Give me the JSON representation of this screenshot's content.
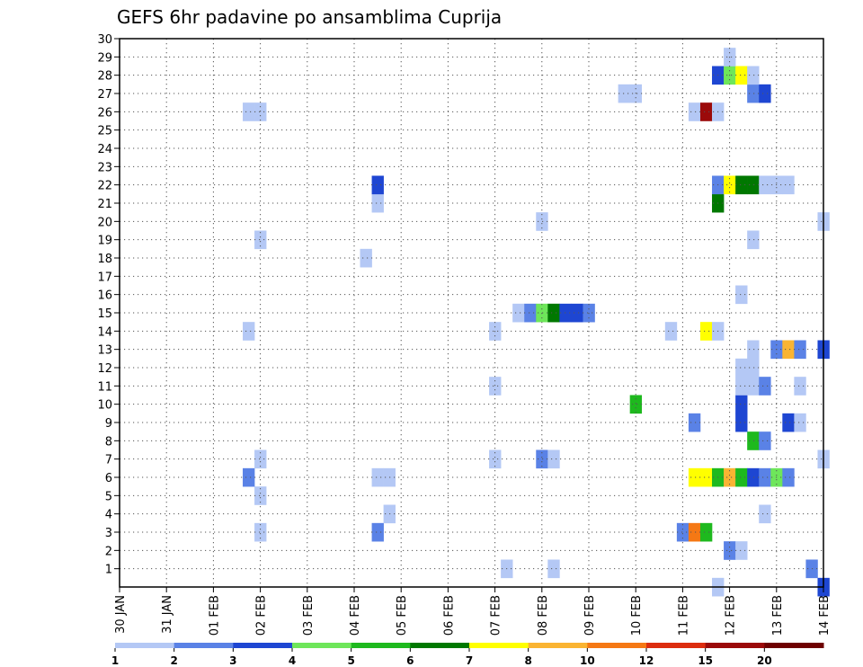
{
  "chart_data": {
    "type": "heatmap",
    "title": "GEFS 6hr padavine po ansamblima Cuprija",
    "xlabel": "",
    "ylabel": "",
    "x_ticks": [
      "30 JAN",
      "31 JAN",
      "01 FEB",
      "02 FEB",
      "03 FEB",
      "04 FEB",
      "05 FEB",
      "06 FEB",
      "07 FEB",
      "08 FEB",
      "09 FEB",
      "10 FEB",
      "11 FEB",
      "12 FEB",
      "13 FEB",
      "14 FEB"
    ],
    "y_ticks": [
      1,
      2,
      3,
      4,
      5,
      6,
      7,
      8,
      9,
      10,
      11,
      12,
      13,
      14,
      15,
      16,
      17,
      18,
      19,
      20,
      21,
      22,
      23,
      24,
      25,
      26,
      27,
      28,
      29,
      30
    ],
    "xlim": [
      0,
      60
    ],
    "ylim": [
      0,
      30
    ],
    "grid": true,
    "legend": {
      "placement": "bottom",
      "labels": [
        "1",
        "2",
        "3",
        "4",
        "5",
        "6",
        "7",
        "8",
        "10",
        "12",
        "15",
        "20"
      ],
      "colors": [
        "#b4c8f5",
        "#5a82e6",
        "#1e46d2",
        "#6ee65a",
        "#1eb91e",
        "#007800",
        "#ffff00",
        "#fab432",
        "#f57814",
        "#dc2d0f",
        "#9b0a0a",
        "#6e0000"
      ]
    },
    "cells": [
      {
        "member": 0,
        "step": 51,
        "level": 1
      },
      {
        "member": 0,
        "step": 60,
        "level": 3
      },
      {
        "member": 1,
        "step": 33,
        "level": 1
      },
      {
        "member": 1,
        "step": 37,
        "level": 1
      },
      {
        "member": 1,
        "step": 59,
        "level": 2
      },
      {
        "member": 2,
        "step": 52,
        "level": 2
      },
      {
        "member": 2,
        "step": 53,
        "level": 1
      },
      {
        "member": 3,
        "step": 12,
        "level": 1
      },
      {
        "member": 3,
        "step": 22,
        "level": 2
      },
      {
        "member": 3,
        "step": 48,
        "level": 2
      },
      {
        "member": 3,
        "step": 49,
        "level": 9
      },
      {
        "member": 3,
        "step": 50,
        "level": 5
      },
      {
        "member": 4,
        "step": 23,
        "level": 1
      },
      {
        "member": 4,
        "step": 55,
        "level": 1
      },
      {
        "member": 5,
        "step": 12,
        "level": 1
      },
      {
        "member": 6,
        "step": 11,
        "level": 2
      },
      {
        "member": 6,
        "step": 22,
        "level": 1
      },
      {
        "member": 6,
        "step": 23,
        "level": 1
      },
      {
        "member": 6,
        "step": 49,
        "level": 7
      },
      {
        "member": 6,
        "step": 50,
        "level": 7
      },
      {
        "member": 6,
        "step": 51,
        "level": 5
      },
      {
        "member": 6,
        "step": 52,
        "level": 8
      },
      {
        "member": 6,
        "step": 53,
        "level": 5
      },
      {
        "member": 6,
        "step": 54,
        "level": 3
      },
      {
        "member": 6,
        "step": 55,
        "level": 2
      },
      {
        "member": 6,
        "step": 56,
        "level": 4
      },
      {
        "member": 6,
        "step": 57,
        "level": 2
      },
      {
        "member": 7,
        "step": 12,
        "level": 1
      },
      {
        "member": 7,
        "step": 32,
        "level": 1
      },
      {
        "member": 7,
        "step": 36,
        "level": 2
      },
      {
        "member": 7,
        "step": 37,
        "level": 1
      },
      {
        "member": 7,
        "step": 60,
        "level": 1
      },
      {
        "member": 8,
        "step": 54,
        "level": 5
      },
      {
        "member": 8,
        "step": 55,
        "level": 2
      },
      {
        "member": 9,
        "step": 49,
        "level": 2
      },
      {
        "member": 9,
        "step": 53,
        "level": 3
      },
      {
        "member": 9,
        "step": 57,
        "level": 3
      },
      {
        "member": 9,
        "step": 58,
        "level": 1
      },
      {
        "member": 10,
        "step": 44,
        "level": 5
      },
      {
        "member": 10,
        "step": 53,
        "level": 3
      },
      {
        "member": 11,
        "step": 32,
        "level": 1
      },
      {
        "member": 11,
        "step": 53,
        "level": 1
      },
      {
        "member": 11,
        "step": 54,
        "level": 1
      },
      {
        "member": 11,
        "step": 55,
        "level": 2
      },
      {
        "member": 11,
        "step": 58,
        "level": 1
      },
      {
        "member": 12,
        "step": 53,
        "level": 1
      },
      {
        "member": 12,
        "step": 54,
        "level": 1
      },
      {
        "member": 13,
        "step": 54,
        "level": 1
      },
      {
        "member": 13,
        "step": 56,
        "level": 2
      },
      {
        "member": 13,
        "step": 57,
        "level": 8
      },
      {
        "member": 13,
        "step": 58,
        "level": 2
      },
      {
        "member": 13,
        "step": 60,
        "level": 3
      },
      {
        "member": 14,
        "step": 11,
        "level": 1
      },
      {
        "member": 14,
        "step": 32,
        "level": 1
      },
      {
        "member": 14,
        "step": 47,
        "level": 1
      },
      {
        "member": 14,
        "step": 50,
        "level": 7
      },
      {
        "member": 14,
        "step": 51,
        "level": 1
      },
      {
        "member": 15,
        "step": 34,
        "level": 1
      },
      {
        "member": 15,
        "step": 35,
        "level": 2
      },
      {
        "member": 15,
        "step": 36,
        "level": 4
      },
      {
        "member": 15,
        "step": 37,
        "level": 6
      },
      {
        "member": 15,
        "step": 38,
        "level": 3
      },
      {
        "member": 15,
        "step": 39,
        "level": 3
      },
      {
        "member": 15,
        "step": 40,
        "level": 2
      },
      {
        "member": 16,
        "step": 53,
        "level": 1
      },
      {
        "member": 18,
        "step": 21,
        "level": 1
      },
      {
        "member": 19,
        "step": 12,
        "level": 1
      },
      {
        "member": 19,
        "step": 54,
        "level": 1
      },
      {
        "member": 20,
        "step": 36,
        "level": 1
      },
      {
        "member": 20,
        "step": 60,
        "level": 1
      },
      {
        "member": 21,
        "step": 22,
        "level": 1
      },
      {
        "member": 21,
        "step": 51,
        "level": 6
      },
      {
        "member": 22,
        "step": 22,
        "level": 3
      },
      {
        "member": 22,
        "step": 51,
        "level": 2
      },
      {
        "member": 22,
        "step": 52,
        "level": 7
      },
      {
        "member": 22,
        "step": 53,
        "level": 6
      },
      {
        "member": 22,
        "step": 54,
        "level": 6
      },
      {
        "member": 22,
        "step": 55,
        "level": 1
      },
      {
        "member": 22,
        "step": 56,
        "level": 1
      },
      {
        "member": 22,
        "step": 57,
        "level": 1
      },
      {
        "member": 26,
        "step": 11,
        "level": 1
      },
      {
        "member": 26,
        "step": 12,
        "level": 1
      },
      {
        "member": 26,
        "step": 49,
        "level": 1
      },
      {
        "member": 26,
        "step": 50,
        "level": 11
      },
      {
        "member": 26,
        "step": 51,
        "level": 1
      },
      {
        "member": 27,
        "step": 43,
        "level": 1
      },
      {
        "member": 27,
        "step": 44,
        "level": 1
      },
      {
        "member": 27,
        "step": 54,
        "level": 2
      },
      {
        "member": 27,
        "step": 55,
        "level": 3
      },
      {
        "member": 28,
        "step": 51,
        "level": 3
      },
      {
        "member": 28,
        "step": 52,
        "level": 4
      },
      {
        "member": 28,
        "step": 53,
        "level": 7
      },
      {
        "member": 28,
        "step": 54,
        "level": 1
      },
      {
        "member": 29,
        "step": 52,
        "level": 1
      }
    ]
  }
}
